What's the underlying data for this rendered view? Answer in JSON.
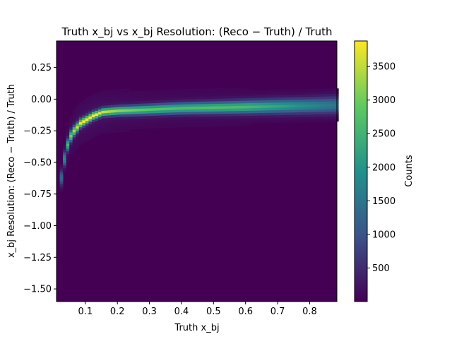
{
  "chart_data": {
    "type": "heatmap",
    "title": "Truth x_bj vs x_bj Resolution: (Reco − Truth) / Truth",
    "xlabel": "Truth x_bj",
    "ylabel": "x_bj Resolution: (Reco − Truth) / Truth",
    "colorbar_label": "Counts",
    "colormap": "viridis",
    "colormap_stops": [
      "#440154",
      "#3b528b",
      "#21918c",
      "#5ec962",
      "#fde725"
    ],
    "background_color": "#440154",
    "xlim": [
      0.01,
      0.885
    ],
    "ylim": [
      -1.6,
      0.46
    ],
    "clim": [
      0,
      3880
    ],
    "x_ticks": [
      "0.1",
      "0.2",
      "0.3",
      "0.4",
      "0.5",
      "0.6",
      "0.7",
      "0.8"
    ],
    "x_tick_values": [
      0.1,
      0.2,
      0.3,
      0.4,
      0.5,
      0.6,
      0.7,
      0.8
    ],
    "y_ticks": [
      "0.25",
      "0.00",
      "−0.25",
      "−0.50",
      "−0.75",
      "−1.00",
      "−1.25",
      "−1.50"
    ],
    "y_tick_values": [
      0.25,
      0.0,
      -0.25,
      -0.5,
      -0.75,
      -1.0,
      -1.25,
      -1.5
    ],
    "colorbar_ticks": [
      "500",
      "1000",
      "1500",
      "2000",
      "2500",
      "3000",
      "3500"
    ],
    "colorbar_tick_values": [
      500,
      1000,
      1500,
      2000,
      2500,
      3000,
      3500
    ],
    "ridge": {
      "x": [
        0.02,
        0.03,
        0.04,
        0.05,
        0.06,
        0.08,
        0.1,
        0.12,
        0.15,
        0.2,
        0.3,
        0.4,
        0.5,
        0.6,
        0.7,
        0.8,
        0.88
      ],
      "y_center": [
        -0.62,
        -0.47,
        -0.36,
        -0.29,
        -0.25,
        -0.19,
        -0.16,
        -0.13,
        -0.1,
        -0.09,
        -0.08,
        -0.07,
        -0.065,
        -0.06,
        -0.055,
        -0.05,
        -0.045
      ],
      "peak_counts": [
        1200,
        1800,
        2400,
        2800,
        3100,
        3500,
        3800,
        3700,
        3300,
        3000,
        2600,
        2500,
        2500,
        2400,
        2100,
        1700,
        1400
      ],
      "y_width": [
        0.04,
        0.035,
        0.03,
        0.028,
        0.025,
        0.022,
        0.02,
        0.02,
        0.02,
        0.022,
        0.025,
        0.028,
        0.03,
        0.033,
        0.036,
        0.04,
        0.045
      ]
    }
  }
}
